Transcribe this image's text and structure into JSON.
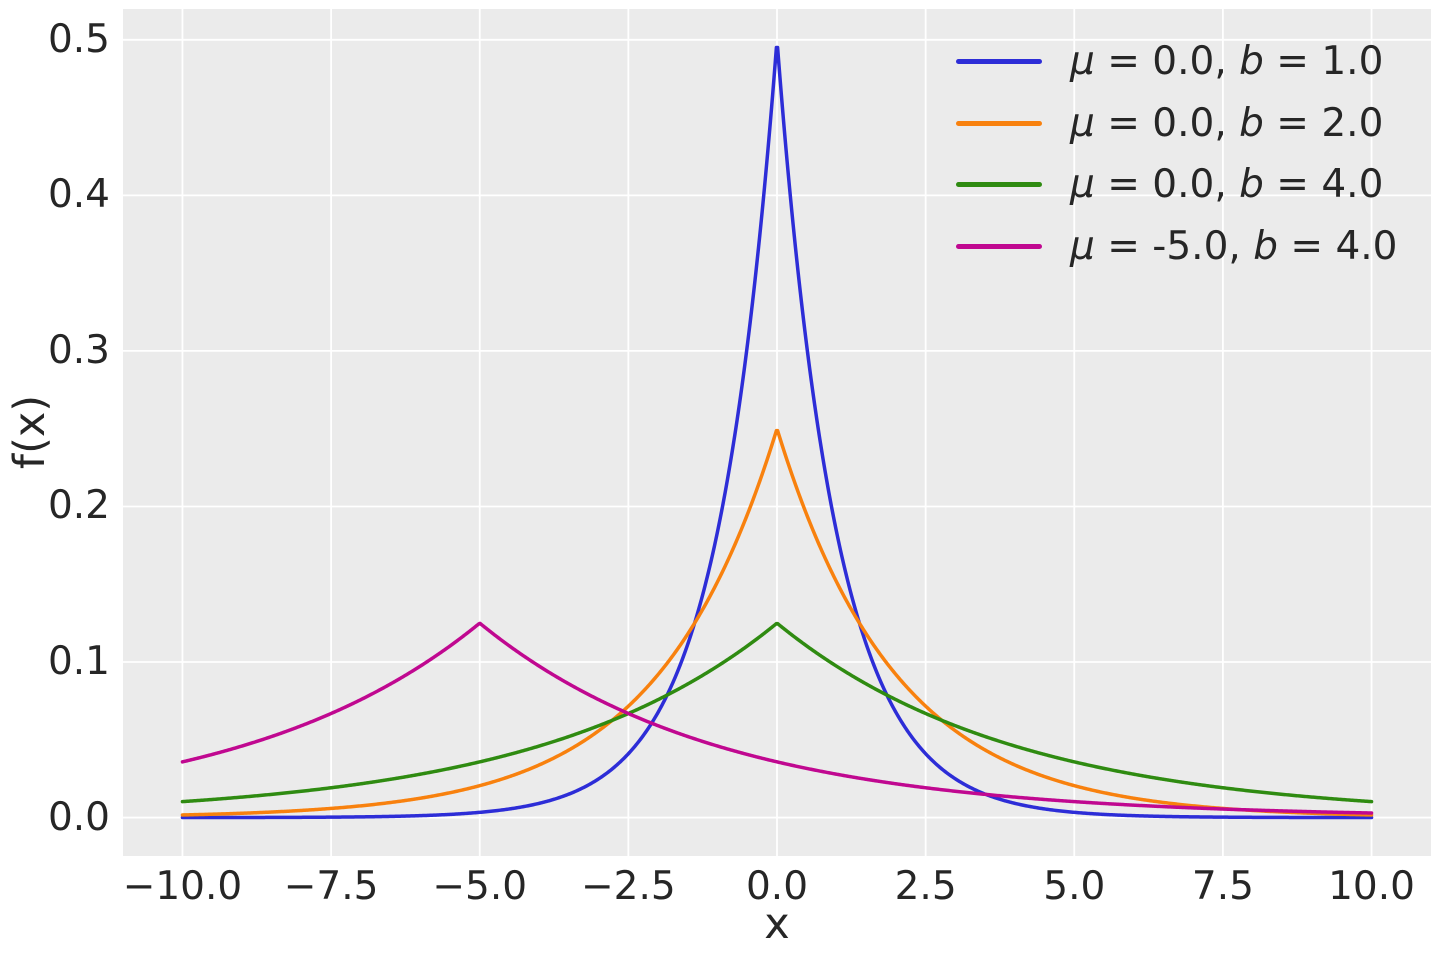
{
  "chart_data": {
    "type": "line",
    "title": "",
    "xlabel": "x",
    "ylabel": "f(x)",
    "distribution": "laplace_pdf",
    "xlim": [
      -11,
      11
    ],
    "ylim": [
      -0.0247,
      0.5198
    ],
    "grid": true,
    "legend_position": "upper right",
    "sample_range": [
      -10,
      10
    ],
    "sample_count": 1000,
    "x_ticks": [
      {
        "value": -10.0,
        "label": "−10.0"
      },
      {
        "value": -7.5,
        "label": "−7.5"
      },
      {
        "value": -5.0,
        "label": "−5.0"
      },
      {
        "value": -2.5,
        "label": "−2.5"
      },
      {
        "value": 0.0,
        "label": "0.0"
      },
      {
        "value": 2.5,
        "label": "2.5"
      },
      {
        "value": 5.0,
        "label": "5.0"
      },
      {
        "value": 7.5,
        "label": "7.5"
      },
      {
        "value": 10.0,
        "label": "10.0"
      }
    ],
    "y_ticks": [
      {
        "value": 0.0,
        "label": "0.0"
      },
      {
        "value": 0.1,
        "label": "0.1"
      },
      {
        "value": 0.2,
        "label": "0.2"
      },
      {
        "value": 0.3,
        "label": "0.3"
      },
      {
        "value": 0.4,
        "label": "0.4"
      },
      {
        "value": 0.5,
        "label": "0.5"
      }
    ],
    "series": [
      {
        "name": "laplace-mu-0.0-b-1.0",
        "mu": 0.0,
        "b": 1.0,
        "peak_value": 0.495,
        "color": "#2d2dd7",
        "legend_parts": [
          {
            "text": "μ",
            "italic": true
          },
          {
            "text": " = 0.0, ",
            "italic": false
          },
          {
            "text": "b",
            "italic": true
          },
          {
            "text": " = 1.0",
            "italic": false
          }
        ]
      },
      {
        "name": "laplace-mu-0.0-b-2.0",
        "mu": 0.0,
        "b": 2.0,
        "peak_value": 0.249,
        "color": "#f8810e",
        "legend_parts": [
          {
            "text": "μ",
            "italic": true
          },
          {
            "text": " = 0.0, ",
            "italic": false
          },
          {
            "text": "b",
            "italic": true
          },
          {
            "text": " = 2.0",
            "italic": false
          }
        ]
      },
      {
        "name": "laplace-mu-0.0-b-4.0",
        "mu": 0.0,
        "b": 4.0,
        "peak_value": 0.124,
        "color": "#2f8b11",
        "legend_parts": [
          {
            "text": "μ",
            "italic": true
          },
          {
            "text": " = 0.0, ",
            "italic": false
          },
          {
            "text": "b",
            "italic": true
          },
          {
            "text": " = 4.0",
            "italic": false
          }
        ]
      },
      {
        "name": "laplace-mu--5.0-b-4.0",
        "mu": -5.0,
        "b": 4.0,
        "peak_value": 0.124,
        "color": "#c00890",
        "legend_parts": [
          {
            "text": "μ",
            "italic": true
          },
          {
            "text": " = -5.0, ",
            "italic": false
          },
          {
            "text": "b",
            "italic": true
          },
          {
            "text": " = 4.0",
            "italic": false
          }
        ]
      }
    ],
    "theme": {
      "plot_bg": "#ebebeb",
      "grid_color": "#ffffff",
      "text_color": "#262626"
    }
  }
}
